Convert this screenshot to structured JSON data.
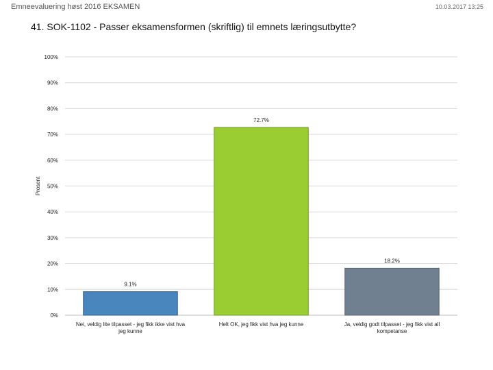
{
  "header": {
    "left_text": "Emneevaluering høst 2016 EKSAMEN",
    "right_text": "10.03.2017 13:25"
  },
  "chart_data": {
    "type": "bar",
    "title": "41. SOK-1102 - Passer eksamensformen (skriftlig) til emnets læringsutbytte?",
    "xlabel": "",
    "ylabel": "Prosent",
    "ylim": [
      0,
      100
    ],
    "yticks": [
      0,
      10,
      20,
      30,
      40,
      50,
      60,
      70,
      80,
      90,
      100
    ],
    "ytick_labels": [
      "0%",
      "10%",
      "20%",
      "30%",
      "40%",
      "50%",
      "60%",
      "70%",
      "80%",
      "90%",
      "100%"
    ],
    "grid": true,
    "categories": [
      [
        "Nei, veldig lite tilpasset - jeg fikk ikke vist hva",
        "jeg kunne"
      ],
      [
        "Helt OK, jeg fikk vist hva jeg kunne"
      ],
      [
        "Ja, veldig godt tilpasset - jeg fikk vist all",
        "kompetanse"
      ]
    ],
    "values": [
      9.1,
      72.7,
      18.2
    ],
    "data_labels": [
      "9.1%",
      "72.7%",
      "18.2%"
    ],
    "colors": [
      "#4a86be",
      "#9acd32",
      "#708090"
    ],
    "bar_borders": [
      "#2e5f8f",
      "#6e9a1e",
      "#55636f"
    ]
  }
}
